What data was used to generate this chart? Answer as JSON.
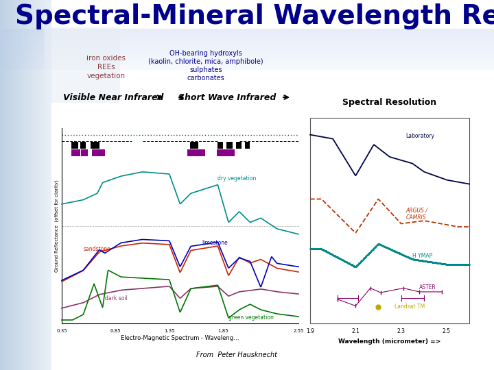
{
  "title": "Spectral-Mineral Wavelength Regions",
  "title_color": "#00008B",
  "title_fontsize": 28,
  "title_fontweight": "bold",
  "bg_color": "#FFFFFF",
  "label_left_lines": [
    "iron oxides",
    "REEs",
    "vegetation"
  ],
  "label_left_color": "#8B3A3A",
  "label_right_lines": [
    "OH-bearing hydroxyls",
    "(kaolin, chlorite, mica, amphibole)",
    "sulphates",
    "carbonates"
  ],
  "label_right_color": "#00008B",
  "vnir_label": "Visible Near Infrared",
  "swir_label": "Short Wave Infrared",
  "spectral_res_title": "Spectral Resolution",
  "from_text": "From  Peter Hausknecht",
  "left_panel_color": "#B8CEDE",
  "title_bar_color": "#D0DCF0"
}
